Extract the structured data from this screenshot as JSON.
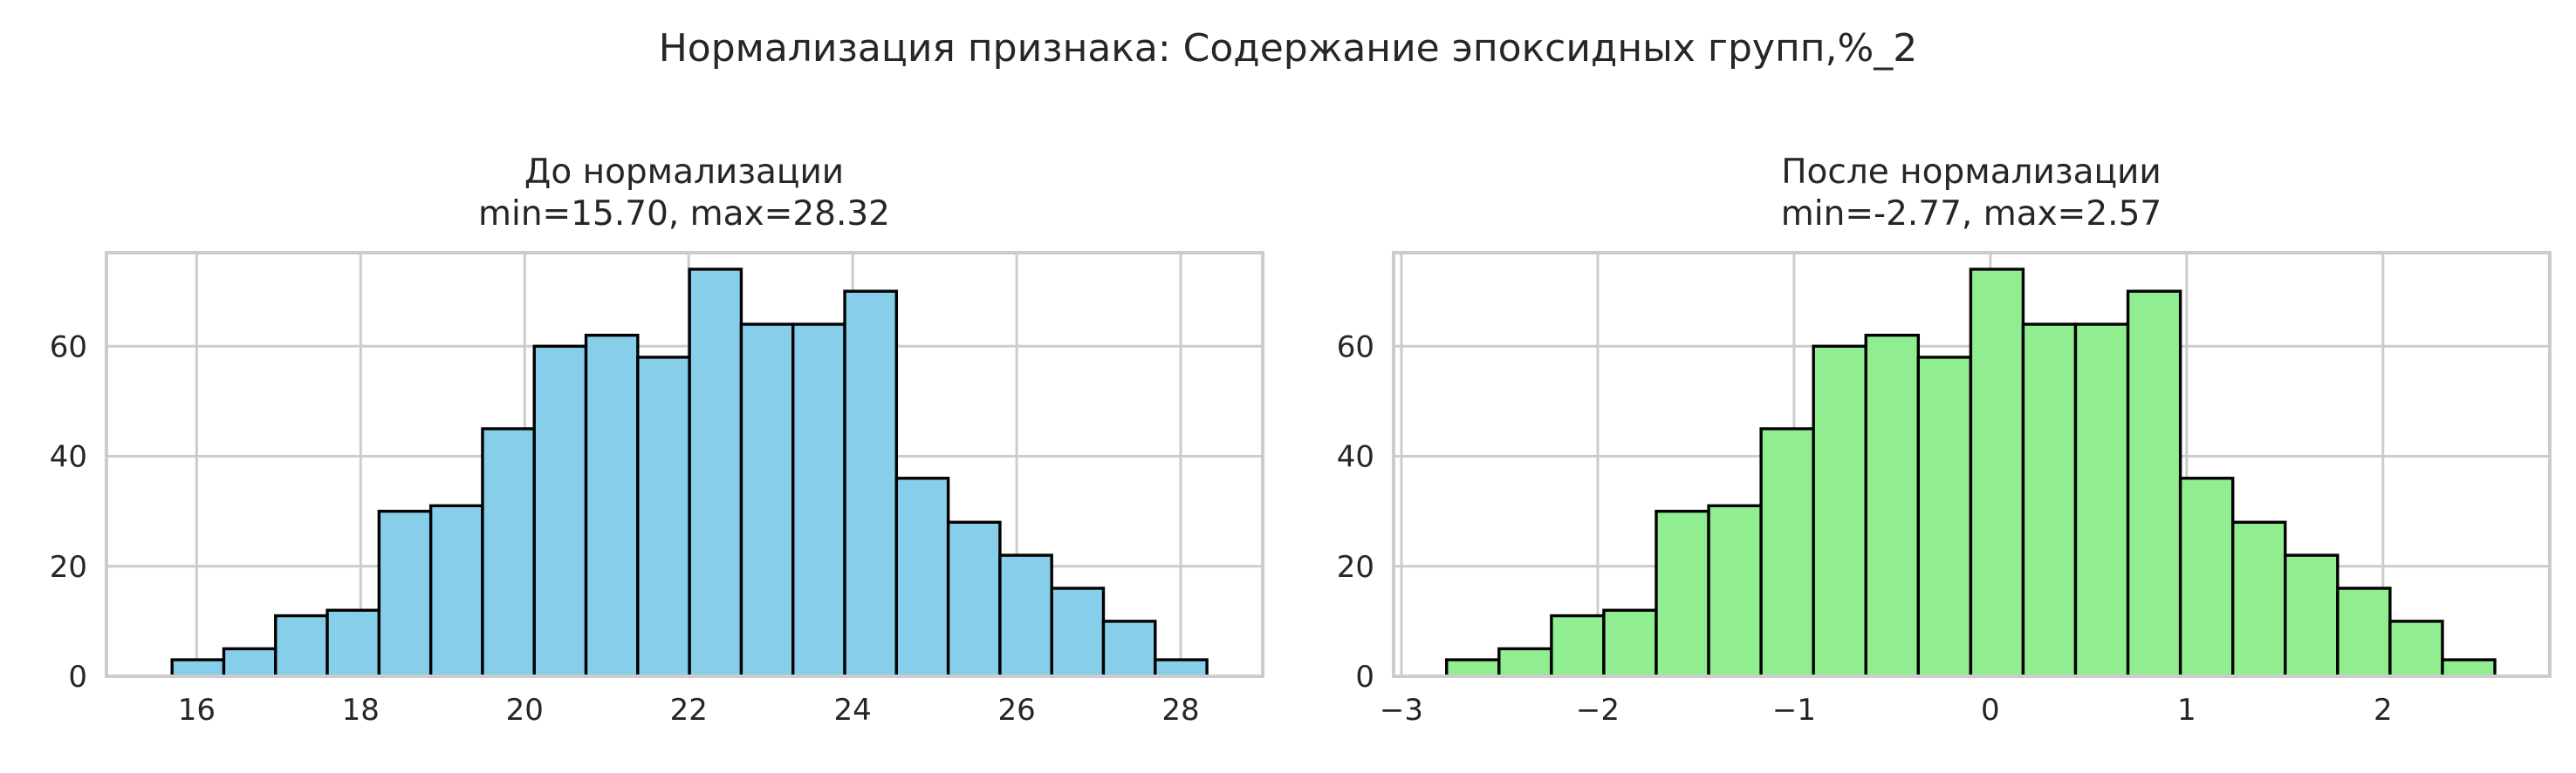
{
  "figure": {
    "suptitle": "Нормализация признака: Содержание эпоксидных групп,%_2"
  },
  "chart_data": [
    {
      "type": "bar",
      "title_line1": "До нормализации",
      "title_line2": "min=15.70, max=28.32",
      "color": "#87ceeb",
      "bin_min": 15.7,
      "bin_max": 28.32,
      "values": [
        3,
        5,
        11,
        12,
        30,
        31,
        45,
        60,
        62,
        58,
        74,
        64,
        64,
        70,
        36,
        28,
        22,
        16,
        10,
        3
      ],
      "xlim": [
        14.9,
        29.0
      ],
      "ylim": [
        0,
        77
      ],
      "xticks": [
        16,
        18,
        20,
        22,
        24,
        26,
        28
      ],
      "xtick_labels": [
        "16",
        "18",
        "20",
        "22",
        "24",
        "26",
        "28"
      ],
      "yticks": [
        0,
        20,
        40,
        60
      ],
      "ytick_labels": [
        "0",
        "20",
        "40",
        "60"
      ],
      "grid": true
    },
    {
      "type": "bar",
      "title_line1": "После нормализации",
      "title_line2": "min=-2.77, max=2.57",
      "color": "#90ee90",
      "bin_min": -2.77,
      "bin_max": 2.57,
      "values": [
        3,
        5,
        11,
        12,
        30,
        31,
        45,
        60,
        62,
        58,
        74,
        64,
        64,
        70,
        36,
        28,
        22,
        16,
        10,
        3
      ],
      "xlim": [
        -3.04,
        2.85
      ],
      "ylim": [
        0,
        77
      ],
      "xticks": [
        -3,
        -2,
        -1,
        0,
        1,
        2
      ],
      "xtick_labels": [
        "−3",
        "−2",
        "−1",
        "0",
        "1",
        "2"
      ],
      "yticks": [
        0,
        20,
        40,
        60
      ],
      "ytick_labels": [
        "0",
        "20",
        "40",
        "60"
      ],
      "grid": true
    }
  ]
}
